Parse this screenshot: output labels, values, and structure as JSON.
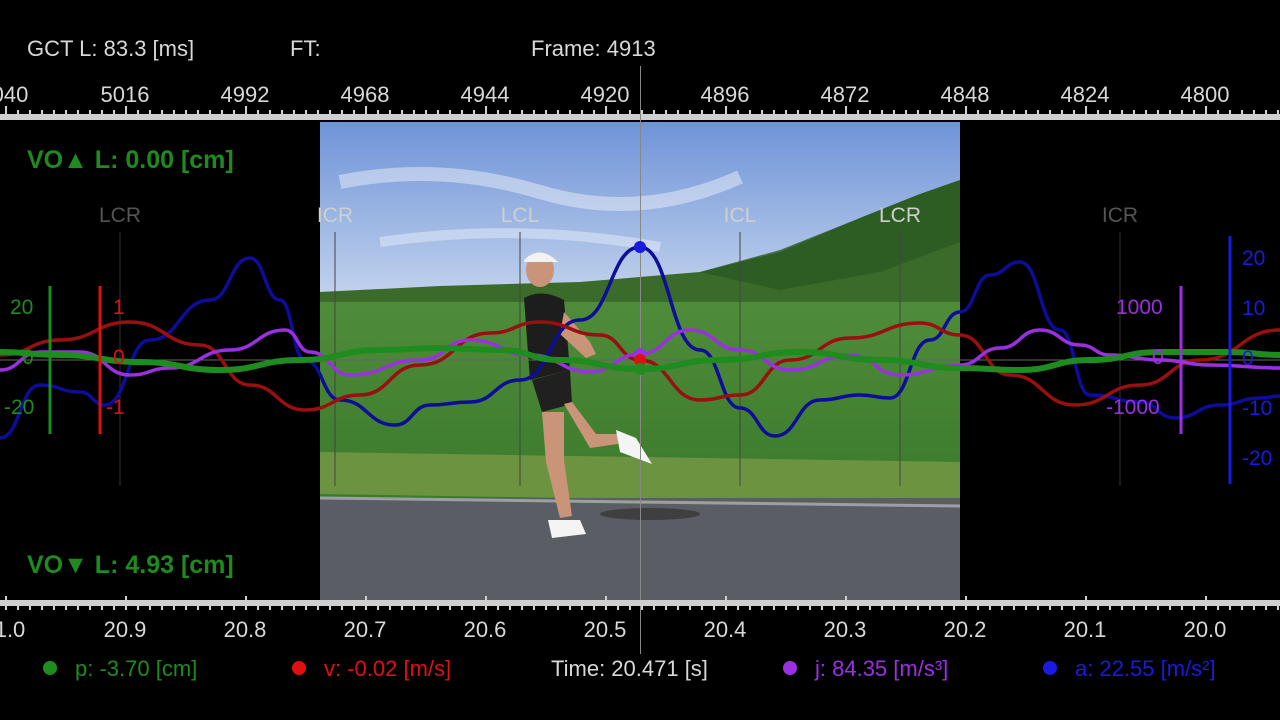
{
  "header": {
    "gct": "GCT L: 83.3 [ms]",
    "ft": "FT:",
    "frame": "Frame: 4913"
  },
  "frame_ruler": {
    "labels": [
      "040",
      "5016",
      "4992",
      "4968",
      "4944",
      "4920",
      "4896",
      "4872",
      "4848",
      "4824",
      "4800"
    ]
  },
  "time_ruler": {
    "labels": [
      "1.0",
      "20.9",
      "20.8",
      "20.7",
      "20.6",
      "20.5",
      "20.4",
      "20.3",
      "20.2",
      "20.1",
      "20.0"
    ]
  },
  "vo_up": "VO▲ L: 0.00 [cm]",
  "vo_down": "VO▼ L: 4.93 [cm]",
  "events": [
    {
      "label": "LCR",
      "dim": true
    },
    {
      "label": "ICR",
      "dim": false
    },
    {
      "label": "LCL",
      "dim": false
    },
    {
      "label": "ICL",
      "dim": false
    },
    {
      "label": "LCR",
      "dim": false
    },
    {
      "label": "ICR",
      "dim": true
    }
  ],
  "axes": {
    "p": {
      "labels": [
        "20",
        "0",
        "-20"
      ],
      "color": "#1e8c1e"
    },
    "v": {
      "labels": [
        "1",
        "0",
        "-1"
      ],
      "color": "#e01010"
    },
    "j": {
      "labels": [
        "1000",
        "0",
        "-1000"
      ],
      "color": "#9b30e0"
    },
    "a": {
      "labels": [
        "20",
        "10",
        "0",
        "-10",
        "-20"
      ],
      "color": "#1a1ae0"
    }
  },
  "legend": {
    "p": "p: -3.70 [cm]",
    "v": "v: -0.02 [m/s]",
    "time": "Time: 20.471 [s]",
    "j": "j: 84.35 [m/s³]",
    "a": "a: 22.55 [m/s²]"
  },
  "colors": {
    "p": "#1e8c1e",
    "v": "#e01010",
    "j": "#9b30e0",
    "a": "#1a1ae0",
    "v_curve": "#9a0f0f",
    "a_curve": "#0d0d9a"
  }
}
